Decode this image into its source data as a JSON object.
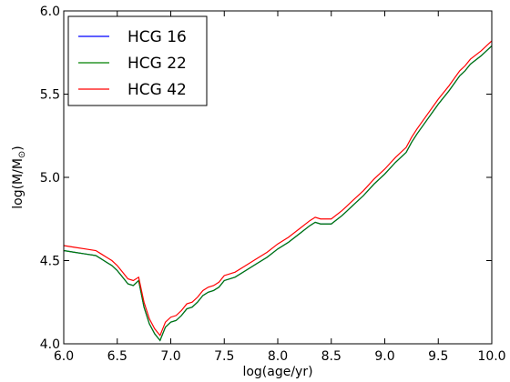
{
  "chart_data": {
    "type": "line",
    "xlabel": "log(age/yr)",
    "ylabel_main": "log(M/M",
    "ylabel_sub": "⊙",
    "ylabel_close": ")",
    "xlim": [
      6.0,
      10.0
    ],
    "ylim": [
      4.0,
      6.0
    ],
    "xticks": [
      "6.0",
      "6.5",
      "7.0",
      "7.5",
      "8.0",
      "8.5",
      "9.0",
      "9.5",
      "10.0"
    ],
    "yticks": [
      "4.0",
      "4.5",
      "5.0",
      "5.5",
      "6.0"
    ],
    "grid": false,
    "legend_position": "top-left",
    "series": [
      {
        "name": "HCG 16",
        "color": "#0000ff",
        "x": [
          6.0,
          6.1,
          6.2,
          6.3,
          6.35,
          6.4,
          6.45,
          6.5,
          6.55,
          6.6,
          6.65,
          6.7,
          6.75,
          6.8,
          6.85,
          6.9,
          6.95,
          7.0,
          7.05,
          7.1,
          7.15,
          7.2,
          7.25,
          7.3,
          7.35,
          7.4,
          7.45,
          7.5,
          7.6,
          7.7,
          7.8,
          7.9,
          8.0,
          8.1,
          8.2,
          8.3,
          8.35,
          8.4,
          8.5,
          8.6,
          8.7,
          8.8,
          8.9,
          9.0,
          9.1,
          9.2,
          9.25,
          9.3,
          9.4,
          9.5,
          9.6,
          9.7,
          9.75,
          9.8,
          9.9,
          10.0
        ],
        "y": [
          4.56,
          4.55,
          4.54,
          4.53,
          4.51,
          4.49,
          4.47,
          4.44,
          4.4,
          4.36,
          4.35,
          4.38,
          4.22,
          4.12,
          4.06,
          4.02,
          4.1,
          4.13,
          4.14,
          4.17,
          4.21,
          4.22,
          4.25,
          4.29,
          4.31,
          4.32,
          4.34,
          4.38,
          4.4,
          4.44,
          4.48,
          4.52,
          4.57,
          4.61,
          4.66,
          4.71,
          4.73,
          4.72,
          4.72,
          4.77,
          4.83,
          4.89,
          4.96,
          5.02,
          5.09,
          5.15,
          5.21,
          5.26,
          5.35,
          5.44,
          5.52,
          5.61,
          5.64,
          5.68,
          5.73,
          5.79
        ]
      },
      {
        "name": "HCG 22",
        "color": "#008000",
        "x": [
          6.0,
          6.1,
          6.2,
          6.3,
          6.35,
          6.4,
          6.45,
          6.5,
          6.55,
          6.6,
          6.65,
          6.7,
          6.75,
          6.8,
          6.85,
          6.9,
          6.95,
          7.0,
          7.05,
          7.1,
          7.15,
          7.2,
          7.25,
          7.3,
          7.35,
          7.4,
          7.45,
          7.5,
          7.6,
          7.7,
          7.8,
          7.9,
          8.0,
          8.1,
          8.2,
          8.3,
          8.35,
          8.4,
          8.5,
          8.6,
          8.7,
          8.8,
          8.9,
          9.0,
          9.1,
          9.2,
          9.25,
          9.3,
          9.4,
          9.5,
          9.6,
          9.7,
          9.75,
          9.8,
          9.9,
          10.0
        ],
        "y": [
          4.56,
          4.55,
          4.54,
          4.53,
          4.51,
          4.49,
          4.47,
          4.44,
          4.4,
          4.36,
          4.35,
          4.38,
          4.22,
          4.12,
          4.06,
          4.02,
          4.1,
          4.13,
          4.14,
          4.17,
          4.21,
          4.22,
          4.25,
          4.29,
          4.31,
          4.32,
          4.34,
          4.38,
          4.4,
          4.44,
          4.48,
          4.52,
          4.57,
          4.61,
          4.66,
          4.71,
          4.73,
          4.72,
          4.72,
          4.77,
          4.83,
          4.89,
          4.96,
          5.02,
          5.09,
          5.15,
          5.21,
          5.26,
          5.35,
          5.44,
          5.52,
          5.61,
          5.64,
          5.68,
          5.73,
          5.79
        ]
      },
      {
        "name": "HCG 42",
        "color": "#ff0000",
        "x": [
          6.0,
          6.1,
          6.2,
          6.3,
          6.35,
          6.4,
          6.45,
          6.5,
          6.55,
          6.6,
          6.65,
          6.7,
          6.75,
          6.8,
          6.85,
          6.9,
          6.95,
          7.0,
          7.05,
          7.1,
          7.15,
          7.2,
          7.25,
          7.3,
          7.35,
          7.4,
          7.45,
          7.5,
          7.6,
          7.7,
          7.8,
          7.9,
          8.0,
          8.1,
          8.2,
          8.3,
          8.35,
          8.4,
          8.5,
          8.6,
          8.7,
          8.8,
          8.9,
          9.0,
          9.1,
          9.2,
          9.25,
          9.3,
          9.4,
          9.5,
          9.6,
          9.7,
          9.75,
          9.8,
          9.9,
          10.0
        ],
        "y": [
          4.59,
          4.58,
          4.57,
          4.56,
          4.54,
          4.52,
          4.5,
          4.47,
          4.43,
          4.39,
          4.38,
          4.4,
          4.25,
          4.15,
          4.09,
          4.05,
          4.13,
          4.16,
          4.17,
          4.2,
          4.24,
          4.25,
          4.28,
          4.32,
          4.34,
          4.35,
          4.37,
          4.41,
          4.43,
          4.47,
          4.51,
          4.55,
          4.6,
          4.64,
          4.69,
          4.74,
          4.76,
          4.75,
          4.75,
          4.8,
          4.86,
          4.92,
          4.99,
          5.05,
          5.12,
          5.18,
          5.24,
          5.29,
          5.38,
          5.47,
          5.55,
          5.64,
          5.67,
          5.71,
          5.76,
          5.82
        ]
      }
    ]
  }
}
